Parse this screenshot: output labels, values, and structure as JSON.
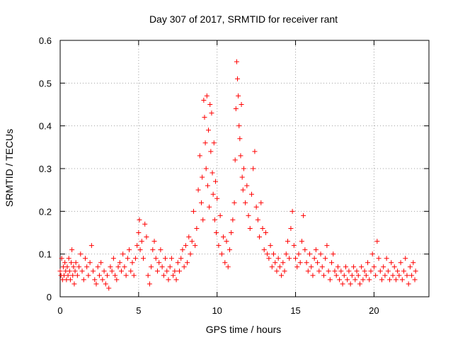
{
  "chart_data": {
    "type": "scatter",
    "title": "Day 307 of 2017, SRMTID for receiver rant",
    "xlabel": "GPS time / hours",
    "ylabel": "SRMTID / TECUs",
    "xlim": [
      0,
      23.5
    ],
    "ylim": [
      0,
      0.6
    ],
    "xticks": [
      0,
      5,
      10,
      15,
      20
    ],
    "yticks": [
      0,
      0.1,
      0.2,
      0.3,
      0.4,
      0.5,
      0.6
    ],
    "xtick_labels": [
      "0",
      "5",
      "10",
      "15",
      "20"
    ],
    "ytick_labels": [
      "0",
      "0.1",
      "0.2",
      "0.3",
      "0.4",
      "0.5",
      "0.6"
    ],
    "grid": true,
    "marker": "+",
    "marker_color": "#ff0000",
    "series": [
      {
        "name": "SRMTID",
        "points": [
          [
            0.0,
            0.06
          ],
          [
            0.05,
            0.05
          ],
          [
            0.1,
            0.09
          ],
          [
            0.15,
            0.04
          ],
          [
            0.2,
            0.07
          ],
          [
            0.25,
            0.05
          ],
          [
            0.3,
            0.08
          ],
          [
            0.35,
            0.06
          ],
          [
            0.4,
            0.04
          ],
          [
            0.45,
            0.07
          ],
          [
            0.5,
            0.05
          ],
          [
            0.55,
            0.09
          ],
          [
            0.6,
            0.06
          ],
          [
            0.65,
            0.04
          ],
          [
            0.7,
            0.08
          ],
          [
            0.75,
            0.11
          ],
          [
            0.8,
            0.05
          ],
          [
            0.85,
            0.07
          ],
          [
            0.9,
            0.03
          ],
          [
            0.95,
            0.06
          ],
          [
            1.0,
            0.08
          ],
          [
            1.1,
            0.05
          ],
          [
            1.2,
            0.07
          ],
          [
            1.3,
            0.1
          ],
          [
            1.4,
            0.06
          ],
          [
            1.5,
            0.04
          ],
          [
            1.6,
            0.09
          ],
          [
            1.7,
            0.07
          ],
          [
            1.8,
            0.05
          ],
          [
            1.9,
            0.08
          ],
          [
            2.0,
            0.12
          ],
          [
            2.1,
            0.06
          ],
          [
            2.2,
            0.04
          ],
          [
            2.3,
            0.03
          ],
          [
            2.4,
            0.07
          ],
          [
            2.5,
            0.05
          ],
          [
            2.6,
            0.08
          ],
          [
            2.7,
            0.04
          ],
          [
            2.8,
            0.06
          ],
          [
            2.9,
            0.03
          ],
          [
            3.0,
            0.05
          ],
          [
            3.1,
            0.02
          ],
          [
            3.2,
            0.07
          ],
          [
            3.3,
            0.06
          ],
          [
            3.4,
            0.09
          ],
          [
            3.5,
            0.05
          ],
          [
            3.6,
            0.04
          ],
          [
            3.7,
            0.07
          ],
          [
            3.8,
            0.08
          ],
          [
            3.9,
            0.06
          ],
          [
            4.0,
            0.1
          ],
          [
            4.1,
            0.07
          ],
          [
            4.2,
            0.05
          ],
          [
            4.3,
            0.09
          ],
          [
            4.4,
            0.11
          ],
          [
            4.5,
            0.06
          ],
          [
            4.6,
            0.08
          ],
          [
            4.7,
            0.05
          ],
          [
            4.8,
            0.09
          ],
          [
            4.9,
            0.12
          ],
          [
            5.0,
            0.15
          ],
          [
            5.05,
            0.18
          ],
          [
            5.1,
            0.11
          ],
          [
            5.2,
            0.13
          ],
          [
            5.3,
            0.09
          ],
          [
            5.4,
            0.17
          ],
          [
            5.5,
            0.14
          ],
          [
            5.6,
            0.05
          ],
          [
            5.7,
            0.03
          ],
          [
            5.8,
            0.07
          ],
          [
            5.9,
            0.11
          ],
          [
            6.0,
            0.13
          ],
          [
            6.1,
            0.09
          ],
          [
            6.2,
            0.06
          ],
          [
            6.3,
            0.08
          ],
          [
            6.4,
            0.11
          ],
          [
            6.5,
            0.07
          ],
          [
            6.6,
            0.05
          ],
          [
            6.7,
            0.09
          ],
          [
            6.8,
            0.06
          ],
          [
            6.9,
            0.04
          ],
          [
            7.0,
            0.07
          ],
          [
            7.1,
            0.09
          ],
          [
            7.2,
            0.05
          ],
          [
            7.3,
            0.06
          ],
          [
            7.4,
            0.04
          ],
          [
            7.5,
            0.08
          ],
          [
            7.6,
            0.06
          ],
          [
            7.7,
            0.09
          ],
          [
            7.8,
            0.11
          ],
          [
            7.9,
            0.07
          ],
          [
            8.0,
            0.12
          ],
          [
            8.1,
            0.08
          ],
          [
            8.2,
            0.14
          ],
          [
            8.3,
            0.1
          ],
          [
            8.4,
            0.13
          ],
          [
            8.5,
            0.2
          ],
          [
            8.6,
            0.12
          ],
          [
            8.7,
            0.16
          ],
          [
            8.8,
            0.25
          ],
          [
            8.9,
            0.33
          ],
          [
            9.0,
            0.22
          ],
          [
            9.05,
            0.28
          ],
          [
            9.1,
            0.18
          ],
          [
            9.15,
            0.46
          ],
          [
            9.2,
            0.42
          ],
          [
            9.25,
            0.36
          ],
          [
            9.3,
            0.3
          ],
          [
            9.35,
            0.47
          ],
          [
            9.4,
            0.26
          ],
          [
            9.45,
            0.39
          ],
          [
            9.5,
            0.21
          ],
          [
            9.55,
            0.45
          ],
          [
            9.6,
            0.34
          ],
          [
            9.65,
            0.43
          ],
          [
            9.7,
            0.29
          ],
          [
            9.75,
            0.24
          ],
          [
            9.8,
            0.36
          ],
          [
            9.85,
            0.18
          ],
          [
            9.9,
            0.27
          ],
          [
            9.95,
            0.15
          ],
          [
            10.0,
            0.23
          ],
          [
            10.1,
            0.12
          ],
          [
            10.2,
            0.19
          ],
          [
            10.3,
            0.1
          ],
          [
            10.4,
            0.14
          ],
          [
            10.5,
            0.08
          ],
          [
            10.6,
            0.13
          ],
          [
            10.7,
            0.07
          ],
          [
            10.8,
            0.11
          ],
          [
            10.9,
            0.15
          ],
          [
            11.0,
            0.18
          ],
          [
            11.1,
            0.22
          ],
          [
            11.15,
            0.32
          ],
          [
            11.2,
            0.44
          ],
          [
            11.25,
            0.55
          ],
          [
            11.3,
            0.51
          ],
          [
            11.35,
            0.47
          ],
          [
            11.4,
            0.4
          ],
          [
            11.45,
            0.37
          ],
          [
            11.5,
            0.33
          ],
          [
            11.55,
            0.45
          ],
          [
            11.6,
            0.28
          ],
          [
            11.65,
            0.25
          ],
          [
            11.7,
            0.3
          ],
          [
            11.8,
            0.22
          ],
          [
            11.9,
            0.26
          ],
          [
            12.0,
            0.19
          ],
          [
            12.1,
            0.16
          ],
          [
            12.2,
            0.24
          ],
          [
            12.3,
            0.3
          ],
          [
            12.4,
            0.34
          ],
          [
            12.5,
            0.21
          ],
          [
            12.6,
            0.18
          ],
          [
            12.7,
            0.14
          ],
          [
            12.8,
            0.22
          ],
          [
            12.9,
            0.16
          ],
          [
            13.0,
            0.11
          ],
          [
            13.1,
            0.15
          ],
          [
            13.2,
            0.1
          ],
          [
            13.3,
            0.09
          ],
          [
            13.4,
            0.12
          ],
          [
            13.5,
            0.07
          ],
          [
            13.6,
            0.1
          ],
          [
            13.7,
            0.08
          ],
          [
            13.8,
            0.06
          ],
          [
            13.9,
            0.09
          ],
          [
            14.0,
            0.07
          ],
          [
            14.1,
            0.05
          ],
          [
            14.2,
            0.08
          ],
          [
            14.3,
            0.06
          ],
          [
            14.4,
            0.1
          ],
          [
            14.5,
            0.13
          ],
          [
            14.6,
            0.09
          ],
          [
            14.7,
            0.16
          ],
          [
            14.8,
            0.2
          ],
          [
            14.9,
            0.12
          ],
          [
            15.0,
            0.09
          ],
          [
            15.1,
            0.07
          ],
          [
            15.2,
            0.1
          ],
          [
            15.3,
            0.08
          ],
          [
            15.4,
            0.13
          ],
          [
            15.5,
            0.19
          ],
          [
            15.6,
            0.11
          ],
          [
            15.7,
            0.08
          ],
          [
            15.8,
            0.06
          ],
          [
            15.9,
            0.1
          ],
          [
            16.0,
            0.07
          ],
          [
            16.1,
            0.05
          ],
          [
            16.2,
            0.09
          ],
          [
            16.3,
            0.11
          ],
          [
            16.4,
            0.08
          ],
          [
            16.5,
            0.06
          ],
          [
            16.6,
            0.1
          ],
          [
            16.7,
            0.07
          ],
          [
            16.8,
            0.05
          ],
          [
            16.9,
            0.09
          ],
          [
            17.0,
            0.12
          ],
          [
            17.1,
            0.06
          ],
          [
            17.2,
            0.04
          ],
          [
            17.3,
            0.08
          ],
          [
            17.4,
            0.1
          ],
          [
            17.5,
            0.06
          ],
          [
            17.6,
            0.05
          ],
          [
            17.7,
            0.07
          ],
          [
            17.8,
            0.04
          ],
          [
            17.9,
            0.06
          ],
          [
            18.0,
            0.03
          ],
          [
            18.1,
            0.05
          ],
          [
            18.2,
            0.07
          ],
          [
            18.3,
            0.04
          ],
          [
            18.4,
            0.06
          ],
          [
            18.5,
            0.03
          ],
          [
            18.6,
            0.05
          ],
          [
            18.7,
            0.07
          ],
          [
            18.8,
            0.04
          ],
          [
            18.9,
            0.06
          ],
          [
            19.0,
            0.05
          ],
          [
            19.1,
            0.03
          ],
          [
            19.2,
            0.07
          ],
          [
            19.3,
            0.04
          ],
          [
            19.4,
            0.06
          ],
          [
            19.5,
            0.05
          ],
          [
            19.6,
            0.08
          ],
          [
            19.7,
            0.04
          ],
          [
            19.8,
            0.06
          ],
          [
            19.9,
            0.1
          ],
          [
            20.0,
            0.07
          ],
          [
            20.1,
            0.05
          ],
          [
            20.2,
            0.13
          ],
          [
            20.3,
            0.09
          ],
          [
            20.4,
            0.06
          ],
          [
            20.5,
            0.04
          ],
          [
            20.6,
            0.07
          ],
          [
            20.7,
            0.05
          ],
          [
            20.8,
            0.09
          ],
          [
            20.9,
            0.06
          ],
          [
            21.0,
            0.04
          ],
          [
            21.1,
            0.08
          ],
          [
            21.2,
            0.05
          ],
          [
            21.3,
            0.07
          ],
          [
            21.4,
            0.04
          ],
          [
            21.5,
            0.06
          ],
          [
            21.6,
            0.05
          ],
          [
            21.7,
            0.08
          ],
          [
            21.8,
            0.04
          ],
          [
            21.9,
            0.06
          ],
          [
            22.0,
            0.09
          ],
          [
            22.1,
            0.05
          ],
          [
            22.2,
            0.03
          ],
          [
            22.3,
            0.07
          ],
          [
            22.4,
            0.05
          ],
          [
            22.5,
            0.08
          ],
          [
            22.6,
            0.04
          ],
          [
            22.65,
            0.06
          ]
        ]
      }
    ]
  }
}
